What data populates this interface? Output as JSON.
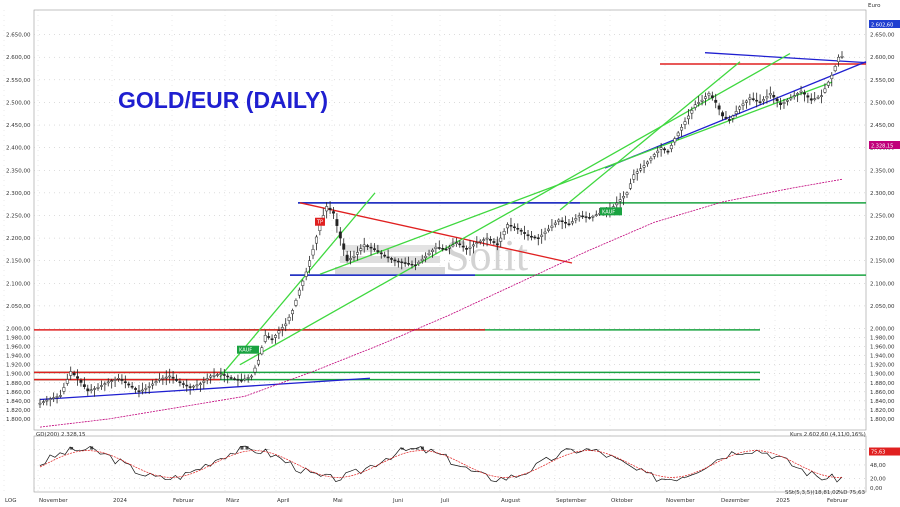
{
  "chart_data": {
    "type": "candlestick",
    "title": "GOLD/EUR (DAILY)",
    "watermark": "Solit",
    "currency_label": "Euro",
    "ylim": [
      1780,
      2700
    ],
    "y_ticks": [
      "1.800,00",
      "1.820,00",
      "1.840,00",
      "1.860,00",
      "1.880,00",
      "1.900,00",
      "1.920,00",
      "1.940,00",
      "1.960,00",
      "1.980,00",
      "2.000,00",
      "2.050,00",
      "2.100,00",
      "2.150,00",
      "2.200,00",
      "2.250,00",
      "2.300,00",
      "2.350,00",
      "2.400,00",
      "2.450,00",
      "2.500,00",
      "2.550,00",
      "2.600,00",
      "2.650,00"
    ],
    "y_tick_values": [
      1800,
      1820,
      1840,
      1860,
      1880,
      1900,
      1920,
      1940,
      1960,
      1980,
      2000,
      2050,
      2100,
      2150,
      2200,
      2250,
      2300,
      2350,
      2400,
      2450,
      2500,
      2550,
      2600,
      2650
    ],
    "x_labels": [
      "LOG",
      "November",
      "2024",
      "Februar",
      "März",
      "April",
      "Mai",
      "Juni",
      "Juli",
      "August",
      "September",
      "Oktober",
      "November",
      "Dezember",
      "2025",
      "Februar"
    ],
    "last_price_label": "2.602,60",
    "ma_label": "2.328,15",
    "ma_legend": "GD(200) 2.328,15",
    "ohlc_legend": "Kurs 2.602,60 (4,11/0,16%)",
    "tags": [
      {
        "label": "TP",
        "color": "#e02020"
      },
      {
        "label": "KAUF",
        "color": "#1aa341"
      },
      {
        "label": "KAUF",
        "color": "#1aa341"
      }
    ],
    "price_path": [
      [
        0,
        1835
      ],
      [
        3,
        1845
      ],
      [
        6,
        1852
      ],
      [
        9,
        1905
      ],
      [
        11,
        1890
      ],
      [
        14,
        1862
      ],
      [
        17,
        1870
      ],
      [
        20,
        1882
      ],
      [
        23,
        1890
      ],
      [
        26,
        1875
      ],
      [
        29,
        1860
      ],
      [
        32,
        1872
      ],
      [
        35,
        1888
      ],
      [
        38,
        1895
      ],
      [
        41,
        1880
      ],
      [
        44,
        1870
      ],
      [
        47,
        1878
      ],
      [
        50,
        1895
      ],
      [
        53,
        1900
      ],
      [
        56,
        1890
      ],
      [
        59,
        1885
      ],
      [
        62,
        1895
      ],
      [
        64,
        1930
      ],
      [
        66,
        1985
      ],
      [
        68,
        1975
      ],
      [
        70,
        1995
      ],
      [
        72,
        2010
      ],
      [
        74,
        2040
      ],
      [
        76,
        2085
      ],
      [
        78,
        2125
      ],
      [
        80,
        2175
      ],
      [
        82,
        2230
      ],
      [
        84,
        2270
      ],
      [
        86,
        2255
      ],
      [
        88,
        2200
      ],
      [
        90,
        2150
      ],
      [
        92,
        2160
      ],
      [
        95,
        2185
      ],
      [
        98,
        2175
      ],
      [
        101,
        2160
      ],
      [
        104,
        2150
      ],
      [
        107,
        2145
      ],
      [
        110,
        2140
      ],
      [
        113,
        2160
      ],
      [
        116,
        2180
      ],
      [
        119,
        2175
      ],
      [
        122,
        2190
      ],
      [
        125,
        2175
      ],
      [
        128,
        2190
      ],
      [
        131,
        2200
      ],
      [
        134,
        2185
      ],
      [
        137,
        2230
      ],
      [
        140,
        2220
      ],
      [
        143,
        2205
      ],
      [
        146,
        2200
      ],
      [
        149,
        2220
      ],
      [
        152,
        2240
      ],
      [
        155,
        2230
      ],
      [
        158,
        2250
      ],
      [
        161,
        2245
      ],
      [
        164,
        2255
      ],
      [
        167,
        2262
      ],
      [
        170,
        2285
      ],
      [
        172,
        2300
      ],
      [
        174,
        2340
      ],
      [
        177,
        2360
      ],
      [
        180,
        2385
      ],
      [
        182,
        2400
      ],
      [
        184,
        2390
      ],
      [
        186,
        2420
      ],
      [
        188,
        2445
      ],
      [
        190,
        2470
      ],
      [
        192,
        2495
      ],
      [
        194,
        2505
      ],
      [
        196,
        2520
      ],
      [
        198,
        2500
      ],
      [
        200,
        2470
      ],
      [
        202,
        2460
      ],
      [
        205,
        2490
      ],
      [
        208,
        2510
      ],
      [
        211,
        2500
      ],
      [
        214,
        2520
      ],
      [
        217,
        2495
      ],
      [
        220,
        2510
      ],
      [
        223,
        2525
      ],
      [
        226,
        2505
      ],
      [
        229,
        2515
      ],
      [
        232,
        2560
      ],
      [
        234,
        2600
      ],
      [
        235,
        2602
      ]
    ],
    "ma_path": [
      [
        0,
        1782
      ],
      [
        20,
        1800
      ],
      [
        40,
        1825
      ],
      [
        60,
        1850
      ],
      [
        80,
        1905
      ],
      [
        100,
        1965
      ],
      [
        120,
        2030
      ],
      [
        140,
        2100
      ],
      [
        160,
        2170
      ],
      [
        180,
        2235
      ],
      [
        200,
        2280
      ],
      [
        220,
        2310
      ],
      [
        235,
        2330
      ]
    ],
    "oscillator": {
      "ylim": [
        0,
        100
      ],
      "ticks": [
        "80,00",
        "48,00",
        "20,00",
        "0,00"
      ],
      "tick_values": [
        80,
        48,
        20,
        0
      ],
      "legend": "SSt(5,3,5)(18,81,02",
      "legend2": "%D 75,63",
      "last_value_label": "75,63"
    }
  }
}
